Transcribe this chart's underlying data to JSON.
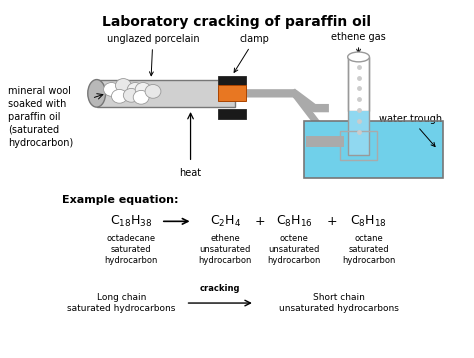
{
  "title": "Laboratory cracking of paraffin oil",
  "title_fontsize": 10,
  "bg_color": "#ffffff",
  "label_fontsize": 7,
  "tube_color": "#d0d0d0",
  "tube_cap_color": "#b8b8b8",
  "wool_color": "#e8e8e8",
  "clamp_orange": "#e87722",
  "clamp_black": "#1a1a1a",
  "pipe_color": "#aaaaaa",
  "water_color": "#70d0ea",
  "trough_border": "#777777",
  "inner_box_color": "#c0e8f0",
  "tube_fill_color": "#90d8f0",
  "labels": {
    "unglazed_porcelain": "unglazed porcelain",
    "mineral_wool": "mineral wool\nsoaked with\nparaffin oil\n(saturated\nhydrocarbon)",
    "clamp": "clamp",
    "heat": "heat",
    "ethene_gas": "ethene gas",
    "water_trough": "water trough"
  },
  "equation_label": "Example equation:",
  "reactant_name": "octadecane\nsaturated\nhydrocarbon",
  "product_names": [
    "ethene\nunsaturated\nhydrocarbon",
    "octene\nunsaturated\nhydrocarbon",
    "octane\nsaturated\nhydrocarbon"
  ],
  "cracking_label": "Long chain\nsaturated hydrocarbons",
  "cracking_arrow_label": "cracking",
  "short_chain_label": "Short chain\nunsaturated hydrocarbons"
}
